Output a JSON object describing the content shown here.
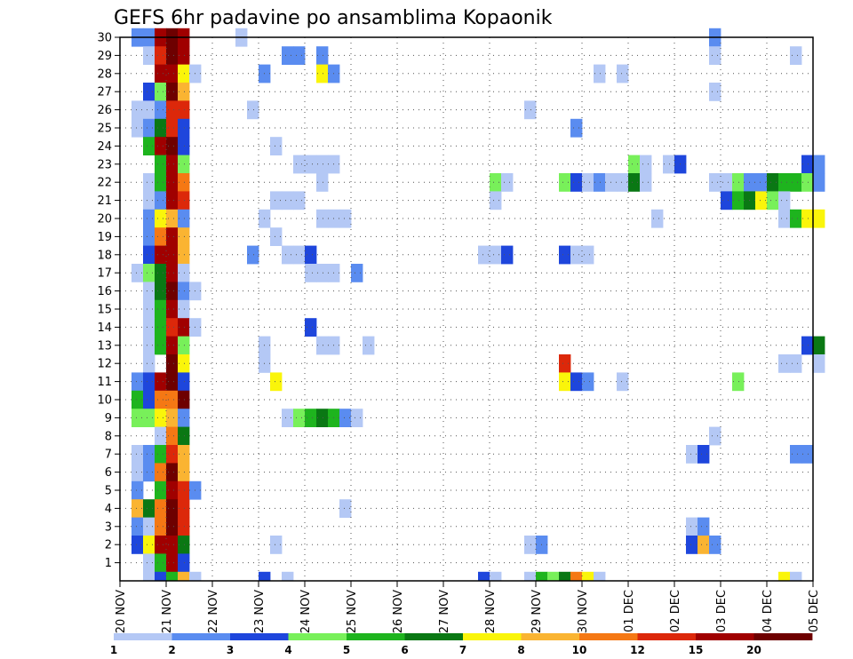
{
  "chart_data": {
    "type": "heatmap",
    "title": "GEFS 6hr padavine po ansamblima Kopaonik",
    "x_ticks": [
      "20 NOV",
      "21 NOV",
      "22 NOV",
      "23 NOV",
      "24 NOV",
      "25 NOV",
      "26 NOV",
      "27 NOV",
      "28 NOV",
      "29 NOV",
      "30 NOV",
      "01 DEC",
      "02 DEC",
      "03 DEC",
      "04 DEC",
      "05 DEC"
    ],
    "y_ticks": [
      "1",
      "2",
      "3",
      "4",
      "5",
      "6",
      "7",
      "8",
      "9",
      "10",
      "11",
      "12",
      "13",
      "14",
      "15",
      "16",
      "17",
      "18",
      "19",
      "20",
      "21",
      "22",
      "23",
      "24",
      "25",
      "26",
      "27",
      "28",
      "29",
      "30"
    ],
    "x_range": [
      "20 NOV",
      "05 DEC"
    ],
    "y_range": [
      0,
      30
    ],
    "x_unit_days": true,
    "steps_per_day": 4,
    "grid": "dotted",
    "colorbar": {
      "labels": [
        "1",
        "2",
        "3",
        "4",
        "5",
        "6",
        "7",
        "8",
        "10",
        "12",
        "15",
        "20"
      ],
      "colors": [
        "#b4c8f5",
        "#5a8cf0",
        "#1e46dc",
        "#78f05a",
        "#1eb41e",
        "#0a7814",
        "#faf50a",
        "#fab432",
        "#f57814",
        "#dc280a",
        "#a00000",
        "#6e0000"
      ]
    },
    "cells": [
      [
        30,
        0.25,
        1
      ],
      [
        30,
        0.5,
        1
      ],
      [
        30,
        0.75,
        10
      ],
      [
        30,
        1.0,
        11
      ],
      [
        30,
        1.25,
        10
      ],
      [
        30,
        2.5,
        0
      ],
      [
        30,
        12.75,
        1
      ],
      [
        29,
        0.5,
        0
      ],
      [
        29,
        0.75,
        9
      ],
      [
        29,
        1.0,
        11
      ],
      [
        29,
        1.25,
        10
      ],
      [
        29,
        3.5,
        1
      ],
      [
        29,
        3.75,
        1
      ],
      [
        29,
        4.25,
        1
      ],
      [
        29,
        12.75,
        0
      ],
      [
        29,
        14.5,
        0
      ],
      [
        28,
        0.75,
        10
      ],
      [
        28,
        1.0,
        10
      ],
      [
        28,
        1.25,
        6
      ],
      [
        28,
        1.5,
        0
      ],
      [
        28,
        3.0,
        1
      ],
      [
        28,
        4.25,
        6
      ],
      [
        28,
        4.5,
        1
      ],
      [
        28,
        10.25,
        0
      ],
      [
        28,
        10.75,
        0
      ],
      [
        27,
        0.5,
        2
      ],
      [
        27,
        0.75,
        3
      ],
      [
        27,
        1.0,
        11
      ],
      [
        27,
        1.25,
        7
      ],
      [
        27,
        12.75,
        0
      ],
      [
        26,
        0.25,
        0
      ],
      [
        26,
        0.5,
        0
      ],
      [
        26,
        0.75,
        1
      ],
      [
        26,
        1.0,
        9
      ],
      [
        26,
        1.25,
        9
      ],
      [
        26,
        2.75,
        0
      ],
      [
        26,
        8.75,
        0
      ],
      [
        25,
        0.25,
        0
      ],
      [
        25,
        0.5,
        1
      ],
      [
        25,
        0.75,
        5
      ],
      [
        25,
        1.0,
        9
      ],
      [
        25,
        1.25,
        2
      ],
      [
        25,
        9.75,
        1
      ],
      [
        24,
        0.5,
        4
      ],
      [
        24,
        0.75,
        10
      ],
      [
        24,
        1.0,
        11
      ],
      [
        24,
        1.25,
        2
      ],
      [
        24,
        3.25,
        0
      ],
      [
        23,
        0.75,
        4
      ],
      [
        23,
        1.0,
        10
      ],
      [
        23,
        1.25,
        3
      ],
      [
        23,
        3.75,
        0
      ],
      [
        23,
        4.0,
        0
      ],
      [
        23,
        4.25,
        0
      ],
      [
        23,
        4.5,
        0
      ],
      [
        23,
        11.0,
        3
      ],
      [
        23,
        11.25,
        0
      ],
      [
        23,
        11.75,
        0
      ],
      [
        23,
        12.0,
        2
      ],
      [
        23,
        14.75,
        2
      ],
      [
        23,
        15.0,
        1
      ],
      [
        22,
        0.5,
        0
      ],
      [
        22,
        0.75,
        4
      ],
      [
        22,
        1.0,
        10
      ],
      [
        22,
        1.25,
        8
      ],
      [
        22,
        4.25,
        0
      ],
      [
        22,
        8.0,
        3
      ],
      [
        22,
        8.25,
        0
      ],
      [
        22,
        9.5,
        3
      ],
      [
        22,
        9.75,
        2
      ],
      [
        22,
        10.0,
        0
      ],
      [
        22,
        10.25,
        1
      ],
      [
        22,
        10.5,
        0
      ],
      [
        22,
        10.75,
        0
      ],
      [
        22,
        11.0,
        5
      ],
      [
        22,
        11.25,
        0
      ],
      [
        22,
        12.75,
        0
      ],
      [
        22,
        13.0,
        0
      ],
      [
        22,
        13.25,
        3
      ],
      [
        22,
        13.5,
        1
      ],
      [
        22,
        13.75,
        1
      ],
      [
        22,
        14.0,
        5
      ],
      [
        22,
        14.25,
        4
      ],
      [
        22,
        14.5,
        4
      ],
      [
        22,
        14.75,
        3
      ],
      [
        22,
        15.0,
        1
      ],
      [
        21,
        0.5,
        0
      ],
      [
        21,
        0.75,
        1
      ],
      [
        21,
        1.0,
        10
      ],
      [
        21,
        1.25,
        9
      ],
      [
        21,
        3.25,
        0
      ],
      [
        21,
        3.5,
        0
      ],
      [
        21,
        3.75,
        0
      ],
      [
        21,
        8.0,
        0
      ],
      [
        21,
        13.0,
        2
      ],
      [
        21,
        13.25,
        4
      ],
      [
        21,
        13.5,
        5
      ],
      [
        21,
        13.75,
        6
      ],
      [
        21,
        14.0,
        3
      ],
      [
        21,
        14.25,
        0
      ],
      [
        20,
        0.5,
        1
      ],
      [
        20,
        0.75,
        6
      ],
      [
        20,
        1.0,
        7
      ],
      [
        20,
        1.25,
        1
      ],
      [
        20,
        3.0,
        0
      ],
      [
        20,
        4.25,
        0
      ],
      [
        20,
        4.5,
        0
      ],
      [
        20,
        4.75,
        0
      ],
      [
        20,
        11.5,
        0
      ],
      [
        20,
        14.25,
        0
      ],
      [
        20,
        14.5,
        4
      ],
      [
        20,
        14.75,
        6
      ],
      [
        20,
        15.0,
        6
      ],
      [
        19,
        0.5,
        1
      ],
      [
        19,
        0.75,
        8
      ],
      [
        19,
        1.0,
        10
      ],
      [
        19,
        1.25,
        7
      ],
      [
        19,
        3.25,
        0
      ],
      [
        18,
        0.5,
        2
      ],
      [
        18,
        0.75,
        10
      ],
      [
        18,
        1.0,
        10
      ],
      [
        18,
        1.25,
        7
      ],
      [
        18,
        2.75,
        1
      ],
      [
        18,
        3.5,
        0
      ],
      [
        18,
        3.75,
        0
      ],
      [
        18,
        4.0,
        2
      ],
      [
        18,
        7.75,
        0
      ],
      [
        18,
        8.0,
        0
      ],
      [
        18,
        8.25,
        2
      ],
      [
        18,
        9.5,
        2
      ],
      [
        18,
        9.75,
        0
      ],
      [
        18,
        10.0,
        0
      ],
      [
        17,
        0.25,
        0
      ],
      [
        17,
        0.5,
        3
      ],
      [
        17,
        0.75,
        5
      ],
      [
        17,
        1.0,
        10
      ],
      [
        17,
        1.25,
        0
      ],
      [
        17,
        4.0,
        0
      ],
      [
        17,
        4.25,
        0
      ],
      [
        17,
        4.5,
        0
      ],
      [
        17,
        5.0,
        1
      ],
      [
        16,
        0.5,
        0
      ],
      [
        16,
        0.75,
        5
      ],
      [
        16,
        1.0,
        11
      ],
      [
        16,
        1.25,
        1
      ],
      [
        16,
        1.5,
        0
      ],
      [
        15,
        0.5,
        0
      ],
      [
        15,
        0.75,
        4
      ],
      [
        15,
        1.0,
        10
      ],
      [
        15,
        1.25,
        0
      ],
      [
        14,
        0.5,
        0
      ],
      [
        14,
        0.75,
        4
      ],
      [
        14,
        1.0,
        9
      ],
      [
        14,
        1.25,
        10
      ],
      [
        14,
        1.5,
        0
      ],
      [
        14,
        4.0,
        2
      ],
      [
        13,
        0.5,
        0
      ],
      [
        13,
        0.75,
        4
      ],
      [
        13,
        1.0,
        10
      ],
      [
        13,
        1.25,
        3
      ],
      [
        13,
        3.0,
        0
      ],
      [
        13,
        4.25,
        0
      ],
      [
        13,
        4.5,
        0
      ],
      [
        13,
        5.25,
        0
      ],
      [
        13,
        14.75,
        2
      ],
      [
        13,
        15.0,
        5
      ],
      [
        12,
        0.5,
        0
      ],
      [
        12,
        1.0,
        11
      ],
      [
        12,
        1.25,
        6
      ],
      [
        12,
        3.0,
        0
      ],
      [
        12,
        9.5,
        9
      ],
      [
        12,
        14.25,
        0
      ],
      [
        12,
        14.5,
        0
      ],
      [
        12,
        15.0,
        0
      ],
      [
        11,
        0.25,
        1
      ],
      [
        11,
        0.5,
        2
      ],
      [
        11,
        0.75,
        10
      ],
      [
        11,
        1.0,
        11
      ],
      [
        11,
        1.25,
        2
      ],
      [
        11,
        3.25,
        6
      ],
      [
        11,
        9.5,
        6
      ],
      [
        11,
        9.75,
        2
      ],
      [
        11,
        10.0,
        1
      ],
      [
        11,
        10.75,
        0
      ],
      [
        11,
        13.25,
        3
      ],
      [
        10,
        0.25,
        4
      ],
      [
        10,
        0.5,
        2
      ],
      [
        10,
        0.75,
        8
      ],
      [
        10,
        1.0,
        8
      ],
      [
        10,
        1.25,
        11
      ],
      [
        9,
        0.25,
        3
      ],
      [
        9,
        0.5,
        3
      ],
      [
        9,
        0.75,
        6
      ],
      [
        9,
        1.0,
        7
      ],
      [
        9,
        1.25,
        1
      ],
      [
        9,
        3.5,
        0
      ],
      [
        9,
        3.75,
        3
      ],
      [
        9,
        4.0,
        4
      ],
      [
        9,
        4.25,
        5
      ],
      [
        9,
        4.5,
        4
      ],
      [
        9,
        4.75,
        1
      ],
      [
        9,
        5.0,
        0
      ],
      [
        8,
        0.75,
        0
      ],
      [
        8,
        1.0,
        8
      ],
      [
        8,
        1.25,
        5
      ],
      [
        8,
        12.75,
        0
      ],
      [
        7,
        0.25,
        0
      ],
      [
        7,
        0.5,
        1
      ],
      [
        7,
        0.75,
        4
      ],
      [
        7,
        1.0,
        9
      ],
      [
        7,
        1.25,
        7
      ],
      [
        7,
        12.25,
        0
      ],
      [
        7,
        12.5,
        2
      ],
      [
        7,
        14.5,
        1
      ],
      [
        7,
        14.75,
        1
      ],
      [
        6,
        0.25,
        0
      ],
      [
        6,
        0.5,
        1
      ],
      [
        6,
        0.75,
        8
      ],
      [
        6,
        1.0,
        11
      ],
      [
        6,
        1.25,
        7
      ],
      [
        5,
        0.25,
        1
      ],
      [
        5,
        0.75,
        4
      ],
      [
        5,
        1.0,
        10
      ],
      [
        5,
        1.25,
        9
      ],
      [
        5,
        1.5,
        1
      ],
      [
        4,
        0.25,
        7
      ],
      [
        4,
        0.5,
        5
      ],
      [
        4,
        0.75,
        8
      ],
      [
        4,
        1.0,
        11
      ],
      [
        4,
        1.25,
        9
      ],
      [
        4,
        4.75,
        0
      ],
      [
        3,
        0.25,
        1
      ],
      [
        3,
        0.5,
        0
      ],
      [
        3,
        0.75,
        8
      ],
      [
        3,
        1.0,
        11
      ],
      [
        3,
        1.25,
        9
      ],
      [
        3,
        12.25,
        0
      ],
      [
        3,
        12.5,
        1
      ],
      [
        2,
        0.25,
        2
      ],
      [
        2,
        0.5,
        6
      ],
      [
        2,
        0.75,
        10
      ],
      [
        2,
        1.0,
        10
      ],
      [
        2,
        1.25,
        5
      ],
      [
        2,
        3.25,
        0
      ],
      [
        2,
        8.75,
        0
      ],
      [
        2,
        9.0,
        1
      ],
      [
        2,
        12.25,
        2
      ],
      [
        2,
        12.5,
        7
      ],
      [
        2,
        12.75,
        1
      ],
      [
        1,
        0.5,
        0
      ],
      [
        1,
        0.75,
        4
      ],
      [
        1,
        1.0,
        10
      ],
      [
        1,
        1.25,
        2
      ],
      [
        0,
        0.5,
        0
      ],
      [
        0,
        0.75,
        2
      ],
      [
        0,
        1.0,
        4
      ],
      [
        0,
        1.25,
        7
      ],
      [
        0,
        1.5,
        0
      ],
      [
        0,
        3.0,
        2
      ],
      [
        0,
        3.5,
        0
      ],
      [
        0,
        7.75,
        2
      ],
      [
        0,
        8.0,
        0
      ],
      [
        0,
        8.75,
        0
      ],
      [
        0,
        9.0,
        4
      ],
      [
        0,
        9.25,
        3
      ],
      [
        0,
        9.5,
        5
      ],
      [
        0,
        9.75,
        8
      ],
      [
        0,
        10.0,
        6
      ],
      [
        0,
        10.25,
        0
      ],
      [
        0,
        14.25,
        6
      ],
      [
        0,
        14.5,
        0
      ]
    ]
  }
}
